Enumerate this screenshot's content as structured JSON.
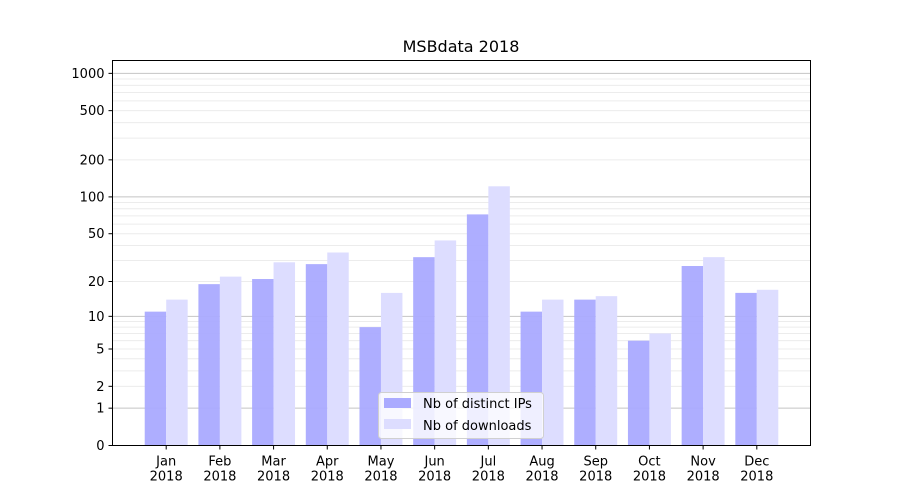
{
  "chart_data": {
    "type": "bar",
    "title": "MSBdata 2018",
    "xlabel": "",
    "ylabel": "",
    "yscale": "log(1+y)",
    "ylim": [
      0,
      1270
    ],
    "yticks": [
      0,
      1,
      2,
      5,
      10,
      20,
      50,
      100,
      200,
      500,
      1000
    ],
    "ytick_labels": [
      "0",
      "1",
      "2",
      "5",
      "10",
      "20",
      "50",
      "100",
      "200",
      "500",
      "1000"
    ],
    "grid": true,
    "categories": [
      [
        "Jan",
        "2018"
      ],
      [
        "Feb",
        "2018"
      ],
      [
        "Mar",
        "2018"
      ],
      [
        "Apr",
        "2018"
      ],
      [
        "May",
        "2018"
      ],
      [
        "Jun",
        "2018"
      ],
      [
        "Jul",
        "2018"
      ],
      [
        "Aug",
        "2018"
      ],
      [
        "Sep",
        "2018"
      ],
      [
        "Oct",
        "2018"
      ],
      [
        "Nov",
        "2018"
      ],
      [
        "Dec",
        "2018"
      ]
    ],
    "series": [
      {
        "name": "Nb of distinct IPs",
        "color": "#aaaaff",
        "values": [
          11,
          19,
          21,
          28,
          8,
          32,
          72,
          11,
          14,
          6,
          27,
          16
        ]
      },
      {
        "name": "Nb of downloads",
        "color": "#ddddff",
        "values": [
          14,
          22,
          29,
          35,
          16,
          44,
          122,
          14,
          15,
          7,
          32,
          17
        ]
      }
    ],
    "legend_placement": "lower center"
  }
}
